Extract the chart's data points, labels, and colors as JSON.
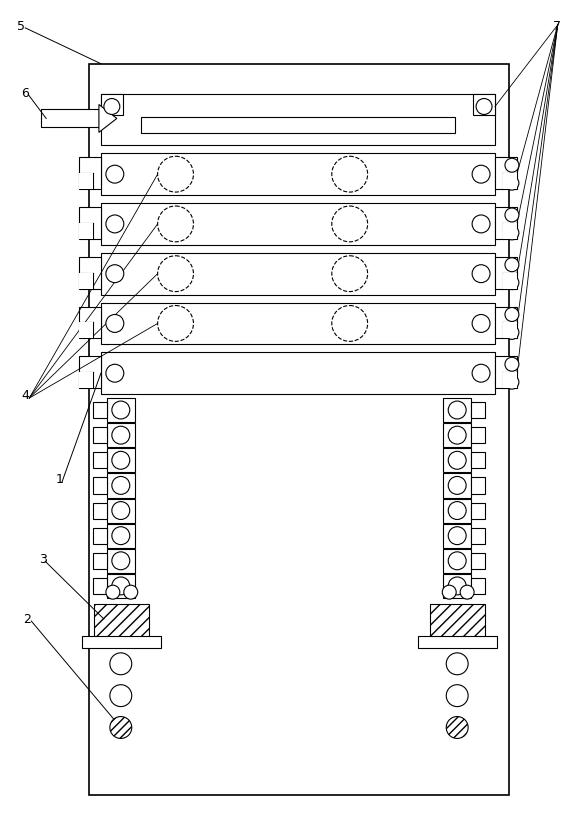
{
  "bg_color": "#ffffff",
  "line_color": "#000000",
  "fig_width": 5.78,
  "fig_height": 8.31,
  "dpi": 100,
  "lw": 0.8,
  "lw2": 1.2
}
